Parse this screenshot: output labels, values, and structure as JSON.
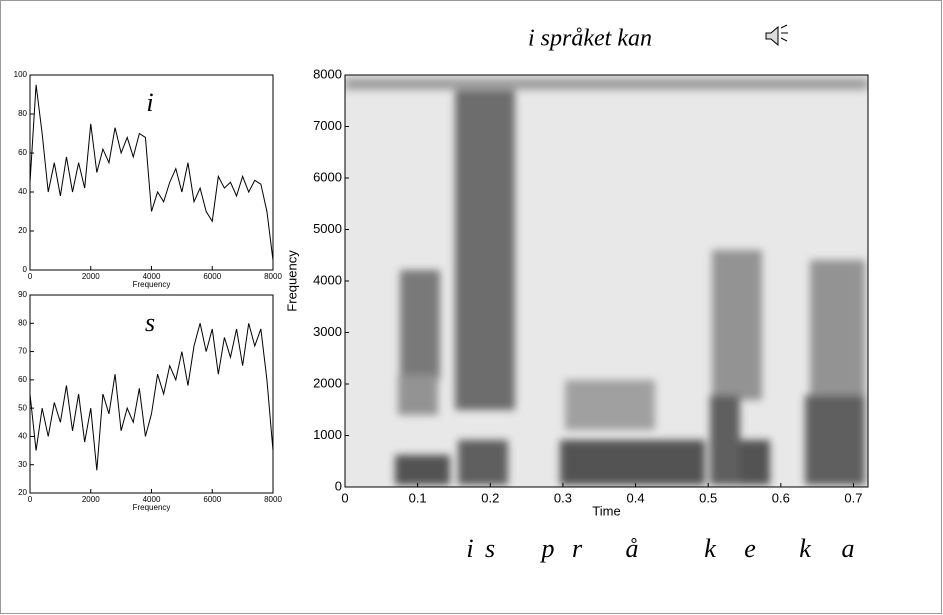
{
  "chart_data": [
    {
      "type": "line",
      "annotation": "i",
      "xlabel": "Frequency",
      "x": [
        0,
        200,
        400,
        600,
        800,
        1000,
        1200,
        1400,
        1600,
        1800,
        2000,
        2200,
        2400,
        2600,
        2800,
        3000,
        3200,
        3400,
        3600,
        3800,
        4000,
        4200,
        4400,
        4600,
        4800,
        5000,
        5200,
        5400,
        5600,
        5800,
        6000,
        6200,
        6400,
        6600,
        6800,
        7000,
        7200,
        7400,
        7600,
        7800,
        8000
      ],
      "series": [
        {
          "color": "#000000",
          "values": [
            45,
            95,
            70,
            40,
            55,
            38,
            58,
            40,
            55,
            42,
            75,
            50,
            62,
            55,
            73,
            60,
            68,
            58,
            70,
            68,
            30,
            40,
            35,
            45,
            52,
            40,
            55,
            35,
            42,
            30,
            25,
            48,
            42,
            45,
            38,
            48,
            40,
            46,
            44,
            30,
            5
          ]
        }
      ],
      "xlim": [
        0,
        8000
      ],
      "xticks": [
        0,
        2000,
        4000,
        6000,
        8000
      ],
      "ylim": [
        0,
        100
      ],
      "yticks": [
        0,
        20,
        40,
        60,
        80,
        100
      ]
    },
    {
      "type": "line",
      "annotation": "s",
      "xlabel": "Frequency",
      "x": [
        0,
        200,
        400,
        600,
        800,
        1000,
        1200,
        1400,
        1600,
        1800,
        2000,
        2200,
        2400,
        2600,
        2800,
        3000,
        3200,
        3400,
        3600,
        3800,
        4000,
        4200,
        4400,
        4600,
        4800,
        5000,
        5200,
        5400,
        5600,
        5800,
        6000,
        6200,
        6400,
        6600,
        6800,
        7000,
        7200,
        7400,
        7600,
        7800,
        8000
      ],
      "series": [
        {
          "color": "#000000",
          "values": [
            55,
            35,
            50,
            40,
            52,
            45,
            58,
            42,
            55,
            38,
            50,
            28,
            55,
            48,
            62,
            42,
            50,
            45,
            57,
            40,
            48,
            62,
            55,
            65,
            60,
            70,
            58,
            72,
            80,
            70,
            78,
            62,
            75,
            68,
            78,
            65,
            80,
            72,
            78,
            60,
            35
          ]
        }
      ],
      "xlim": [
        0,
        8000
      ],
      "xticks": [
        0,
        2000,
        4000,
        6000,
        8000
      ],
      "ylim": [
        20,
        90
      ],
      "yticks": [
        20,
        30,
        40,
        50,
        60,
        70,
        80,
        90
      ]
    },
    {
      "type": "spectrogram",
      "title": "i språket kan",
      "xlabel": "Time",
      "ylabel": "Frequency",
      "xlim": [
        0,
        0.72
      ],
      "xticks": [
        0,
        0.1,
        0.2,
        0.3,
        0.4,
        0.5,
        0.6,
        0.7
      ],
      "ylim": [
        0,
        8000
      ],
      "yticks": [
        0,
        1000,
        2000,
        3000,
        4000,
        5000,
        6000,
        7000,
        8000
      ],
      "phonemes": [
        "i",
        "s",
        "p",
        "r",
        "å",
        "k",
        "e",
        "k",
        "a"
      ]
    }
  ]
}
